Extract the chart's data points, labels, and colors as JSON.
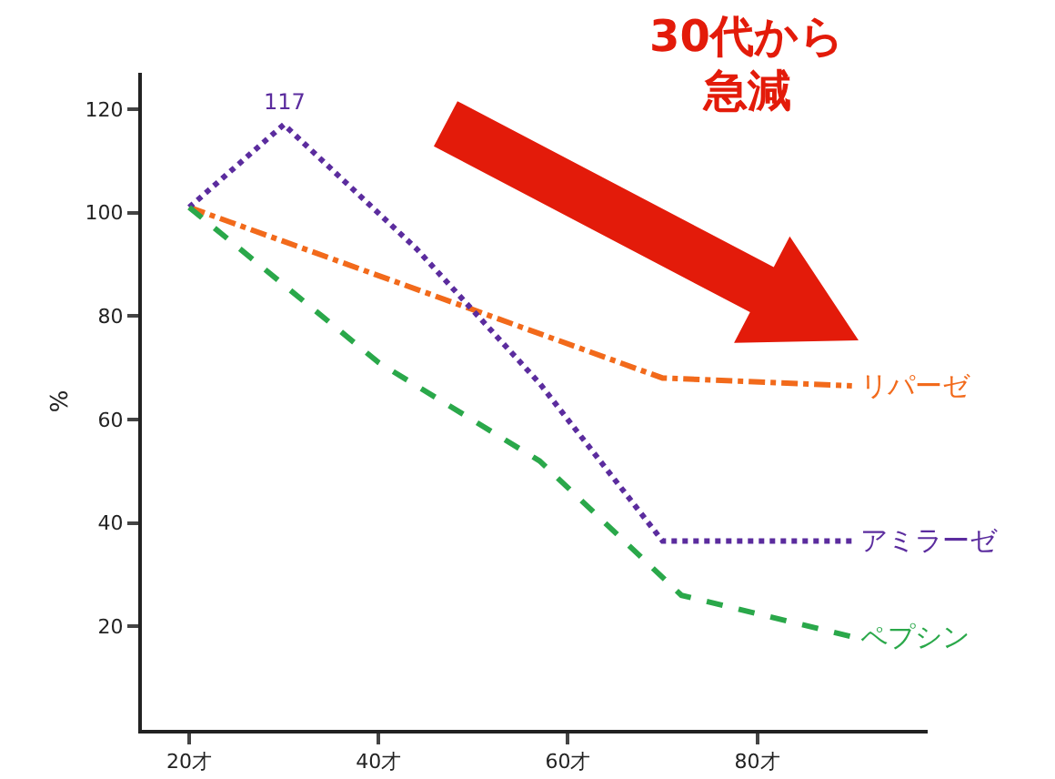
{
  "chart_data": {
    "type": "line",
    "ylabel": "%",
    "xlim": [
      15,
      98
    ],
    "xticks": [
      {
        "value": 20,
        "label": "20才"
      },
      {
        "value": 40,
        "label": "40才"
      },
      {
        "value": 60,
        "label": "60才"
      },
      {
        "value": 80,
        "label": "80才"
      }
    ],
    "ylim": [
      0,
      127
    ],
    "yticks": [
      20,
      40,
      60,
      80,
      100,
      120
    ],
    "grid": false,
    "legend": false,
    "marker": "none",
    "series": [
      {
        "name": "リパーゼ",
        "color": "#f26a1b",
        "line_style": "dashdot",
        "x": [
          20,
          70,
          90
        ],
        "values": [
          101,
          68,
          66.5
        ]
      },
      {
        "name": "アミラーゼ",
        "color": "#5b2c9e",
        "line_style": "dotted",
        "x": [
          20,
          30,
          44,
          57,
          70,
          90
        ],
        "values": [
          101,
          117,
          93,
          67,
          36.5,
          36.5
        ]
      },
      {
        "name": "ペプシン",
        "color": "#2aa84a",
        "line_style": "dashed",
        "x": [
          20,
          40,
          57,
          72,
          90
        ],
        "values": [
          101,
          71,
          52,
          26,
          18
        ]
      }
    ],
    "annotations": [
      {
        "text": "117",
        "x": 30,
        "y": 117
      },
      "30代から",
      "急減"
    ]
  }
}
